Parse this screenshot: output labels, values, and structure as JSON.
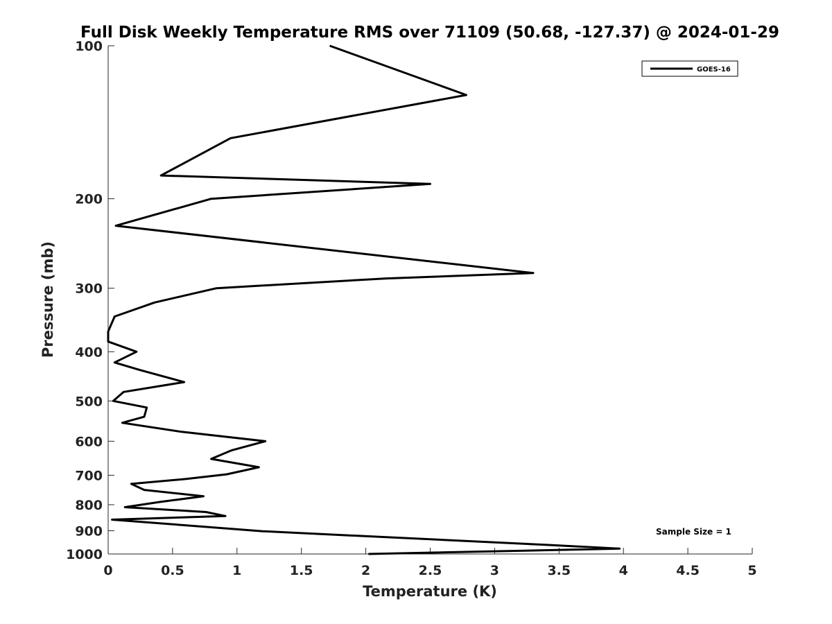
{
  "chart_data": {
    "type": "line",
    "title": "Full Disk Weekly Temperature RMS over 71109 (50.68, -127.37) @ 2024-01-29",
    "xlabel": "Temperature (K)",
    "ylabel": "Pressure (mb)",
    "xlim": [
      0,
      5
    ],
    "ylim": [
      100,
      1000
    ],
    "y_scale": "log",
    "y_reversed": true,
    "xticks": [
      "0",
      "0.5",
      "1",
      "1.5",
      "2",
      "2.5",
      "3",
      "3.5",
      "4",
      "4.5",
      "5"
    ],
    "yticks": [
      "100",
      "200",
      "300",
      "400",
      "500",
      "600",
      "700",
      "800",
      "900",
      "1000"
    ],
    "grid": false,
    "legend_position": "top-right",
    "annotation": "Sample Size = 1",
    "series": [
      {
        "name": "GOES-16",
        "color": "#000000",
        "x": [
          1.72,
          2.78,
          0.95,
          0.41,
          2.5,
          0.8,
          0.06,
          3.3,
          2.16,
          0.84,
          0.36,
          0.05,
          0.0,
          0.0,
          0.22,
          0.05,
          0.24,
          0.59,
          0.12,
          0.04,
          0.3,
          0.28,
          0.11,
          0.57,
          1.22,
          0.96,
          0.8,
          1.17,
          0.92,
          0.6,
          0.18,
          0.28,
          0.74,
          0.4,
          0.13,
          0.76,
          0.91,
          0.03,
          1.2,
          3.42,
          3.97,
          2.02
        ],
        "y": [
          100,
          125,
          152,
          180,
          187,
          200,
          226,
          280,
          287,
          300,
          320,
          341,
          365,
          382,
          400,
          420,
          434,
          459,
          480,
          500,
          515,
          537,
          552,
          575,
          600,
          625,
          650,
          675,
          697,
          712,
          728,
          748,
          770,
          790,
          809,
          827,
          842,
          856,
          902,
          960,
          976,
          1000
        ]
      }
    ]
  }
}
